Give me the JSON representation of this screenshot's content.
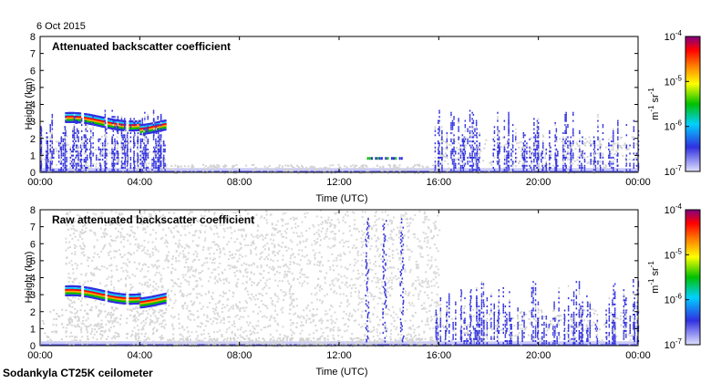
{
  "date": "6 Oct 2015",
  "footer": "Sodankyla CT25K ceilometer",
  "colorbar": {
    "ticks": [
      "10",
      "10",
      "10",
      "10"
    ],
    "exponents": [
      "-4",
      "-5",
      "-6",
      "-7"
    ],
    "values": [
      0.0001,
      1e-05,
      1e-06,
      1e-07
    ],
    "unit": "m",
    "unit_sup1": "-1",
    "unit_mid": " sr",
    "unit_sup2": "-1",
    "colors": [
      "#e0e0ff",
      "#3030e0",
      "#00d0ff",
      "#00c000",
      "#ffff00",
      "#ff8000",
      "#ff0000",
      "#800080"
    ]
  },
  "chart_data": [
    {
      "type": "heatmap",
      "title": "Attenuated backscatter coefficient",
      "xlabel": "Time (UTC)",
      "ylabel": "Height (km)",
      "xticks": [
        "00:00",
        "04:00",
        "08:00",
        "12:00",
        "16:00",
        "20:00",
        "00:00"
      ],
      "yticks": [
        0,
        1,
        2,
        3,
        4,
        5,
        6,
        7,
        8
      ],
      "xlim_hours": [
        0,
        24
      ],
      "ylim": [
        0,
        8
      ],
      "color_scale": "log",
      "clim": [
        1e-07,
        0.0001
      ],
      "features": [
        {
          "kind": "cloud_layer",
          "start_h": 1.0,
          "end_h": 5.0,
          "base_km": 2.6,
          "top_km": 3.5,
          "peak": 0.0001
        },
        {
          "kind": "sparse_columns",
          "start_h": 0.0,
          "end_h": 5.0,
          "max_km": 3.8
        },
        {
          "kind": "low_layer",
          "start_h": 12.8,
          "end_h": 14.5,
          "base_km": 0.6,
          "top_km": 0.9
        },
        {
          "kind": "sparse_columns",
          "start_h": 15.8,
          "end_h": 24.0,
          "max_km": 3.8
        }
      ]
    },
    {
      "type": "heatmap",
      "title": "Raw attenuated backscatter coefficient",
      "xlabel": "Time (UTC)",
      "ylabel": "Height (km)",
      "xticks": [
        "00:00",
        "04:00",
        "08:00",
        "12:00",
        "16:00",
        "20:00",
        "00:00"
      ],
      "yticks": [
        0,
        1,
        2,
        3,
        4,
        5,
        6,
        7,
        8
      ],
      "xlim_hours": [
        0,
        24
      ],
      "ylim": [
        0,
        8
      ],
      "color_scale": "log",
      "clim": [
        1e-07,
        0.0001
      ],
      "features": [
        {
          "kind": "cloud_layer",
          "start_h": 1.0,
          "end_h": 5.0,
          "base_km": 2.6,
          "top_km": 3.5,
          "peak": 0.0001
        },
        {
          "kind": "noise_field",
          "start_h": 1.0,
          "end_h": 16.0,
          "max_km": 8.0
        },
        {
          "kind": "vertical_streaks",
          "at_h": [
            13.1,
            13.8,
            14.5
          ],
          "max_km": 7.5
        },
        {
          "kind": "sparse_columns",
          "start_h": 15.8,
          "end_h": 24.0,
          "max_km": 4.0
        }
      ]
    }
  ]
}
